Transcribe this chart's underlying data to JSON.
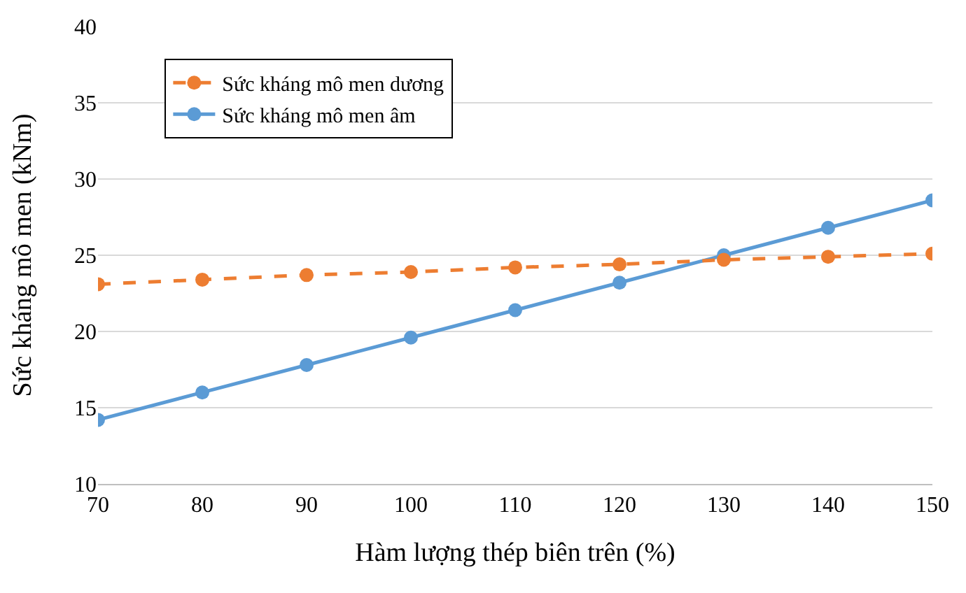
{
  "chart_data": {
    "type": "line",
    "xlabel": "Hàm lượng thép biên trên (%)",
    "ylabel": "Sức kháng mô men (kNm)",
    "x": [
      70,
      80,
      90,
      100,
      110,
      120,
      130,
      140,
      150
    ],
    "series": [
      {
        "name": "Sức kháng mô men dương",
        "color": "#ed7d31",
        "line_style": "dashed",
        "values": [
          23.1,
          23.4,
          23.7,
          23.9,
          24.2,
          24.4,
          24.7,
          24.9,
          25.1
        ]
      },
      {
        "name": "Sức kháng mô men âm",
        "color": "#5b9bd5",
        "line_style": "solid",
        "values": [
          14.2,
          16.0,
          17.8,
          19.6,
          21.4,
          23.2,
          25.0,
          26.8,
          28.6
        ]
      }
    ],
    "xlim": [
      70,
      150
    ],
    "xticks": [
      70,
      80,
      90,
      100,
      110,
      120,
      130,
      140,
      150
    ],
    "ylim": [
      10,
      40
    ],
    "yticks": [
      10,
      15,
      20,
      25,
      30,
      35,
      40
    ],
    "grid": "y",
    "legend": "top left",
    "marker": "circle"
  }
}
